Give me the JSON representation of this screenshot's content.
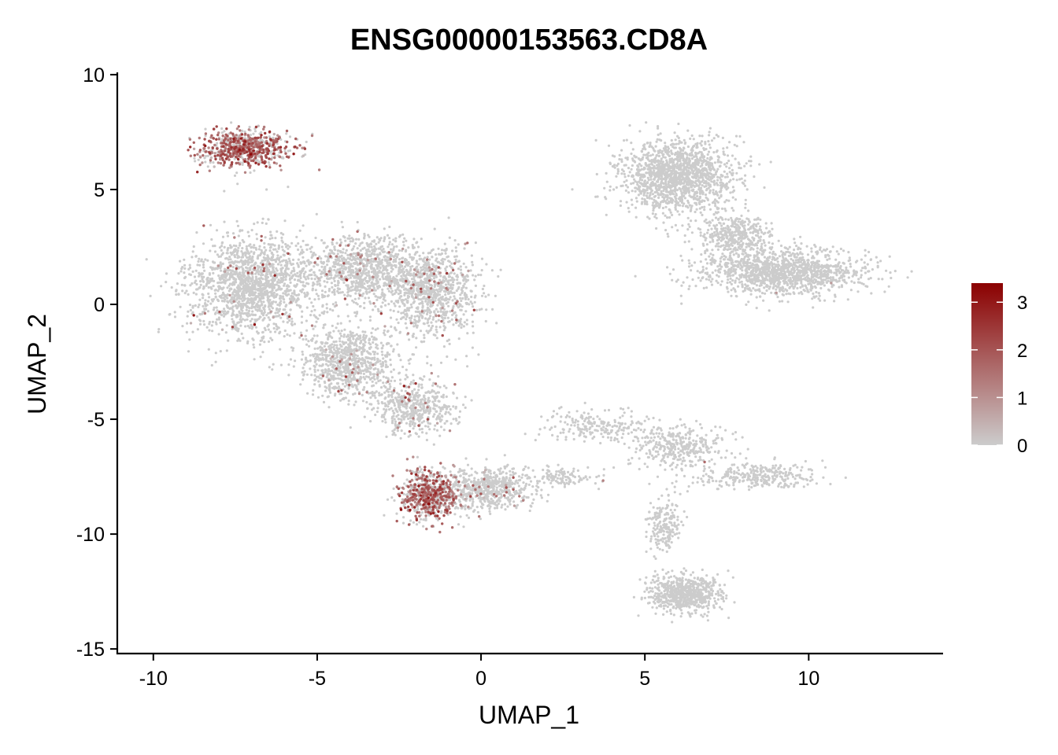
{
  "chart_data": {
    "type": "scatter",
    "title": "ENSG00000153563.CD8A",
    "xlabel": "UMAP_1",
    "ylabel": "UMAP_2",
    "xlim": [
      -11.1,
      14.1
    ],
    "ylim": [
      -15.2,
      10.1
    ],
    "x_ticks": [
      -10,
      -5,
      0,
      5,
      10
    ],
    "x_tick_labels": [
      "-10",
      "-5",
      "0",
      "5",
      "10"
    ],
    "y_ticks": [
      10,
      5,
      0,
      -5,
      -10,
      -15
    ],
    "y_tick_labels": [
      "10",
      "5",
      "0",
      "-5",
      "-10",
      "-15"
    ],
    "grid": false,
    "legend": {
      "position": "right",
      "type": "colorbar",
      "range": [
        0,
        3.4
      ],
      "ticks": [
        0,
        1,
        2,
        3
      ],
      "tick_labels": [
        "0",
        "1",
        "2",
        "3"
      ],
      "colors": [
        "#cccccc",
        "#8b0000"
      ]
    },
    "clusters": [
      {
        "cx": -7.2,
        "cy": 6.8,
        "sx": 1.2,
        "sy": 0.7,
        "n": 700,
        "expr_prob": 0.65,
        "expr_mean": 1.7
      },
      {
        "cx": -7.0,
        "cy": 0.8,
        "sx": 1.7,
        "sy": 2.0,
        "n": 1600,
        "expr_prob": 0.02,
        "expr_mean": 1.4
      },
      {
        "cx": -3.6,
        "cy": 1.5,
        "sx": 1.7,
        "sy": 1.3,
        "n": 1000,
        "expr_prob": 0.05,
        "expr_mean": 1.4
      },
      {
        "cx": -1.5,
        "cy": 0.5,
        "sx": 1.3,
        "sy": 1.8,
        "n": 900,
        "expr_prob": 0.05,
        "expr_mean": 1.5
      },
      {
        "cx": -4.0,
        "cy": -2.5,
        "sx": 1.3,
        "sy": 1.4,
        "n": 900,
        "expr_prob": 0.03,
        "expr_mean": 1.3
      },
      {
        "cx": -2.0,
        "cy": -4.5,
        "sx": 1.1,
        "sy": 1.0,
        "n": 500,
        "expr_prob": 0.06,
        "expr_mean": 1.4
      },
      {
        "cx": -1.6,
        "cy": -8.3,
        "sx": 0.8,
        "sy": 1.0,
        "n": 700,
        "expr_prob": 0.55,
        "expr_mean": 1.6
      },
      {
        "cx": 0.2,
        "cy": -8.0,
        "sx": 1.2,
        "sy": 0.8,
        "n": 600,
        "expr_prob": 0.05,
        "expr_mean": 1.2
      },
      {
        "cx": 6.0,
        "cy": 5.6,
        "sx": 1.6,
        "sy": 1.4,
        "n": 1500,
        "expr_prob": 0.0,
        "expr_mean": 0
      },
      {
        "cx": 9.2,
        "cy": 1.4,
        "sx": 2.2,
        "sy": 0.9,
        "n": 1300,
        "expr_prob": 0.002,
        "expr_mean": 0.8
      },
      {
        "cx": 7.8,
        "cy": 3.0,
        "sx": 1.0,
        "sy": 0.9,
        "n": 400,
        "expr_prob": 0.0,
        "expr_mean": 0
      },
      {
        "cx": 6.2,
        "cy": -12.6,
        "sx": 1.0,
        "sy": 0.7,
        "n": 700,
        "expr_prob": 0.0,
        "expr_mean": 0
      },
      {
        "cx": 6.0,
        "cy": -6.2,
        "sx": 1.3,
        "sy": 0.8,
        "n": 350,
        "expr_prob": 0.01,
        "expr_mean": 0.7
      },
      {
        "cx": 8.5,
        "cy": -7.5,
        "sx": 1.8,
        "sy": 0.5,
        "n": 300,
        "expr_prob": 0.0,
        "expr_mean": 0
      },
      {
        "cx": 3.5,
        "cy": -5.3,
        "sx": 1.5,
        "sy": 0.6,
        "n": 200,
        "expr_prob": 0.0,
        "expr_mean": 0
      },
      {
        "cx": 5.6,
        "cy": -9.5,
        "sx": 0.5,
        "sy": 1.1,
        "n": 200,
        "expr_prob": 0.0,
        "expr_mean": 0
      },
      {
        "cx": 2.5,
        "cy": -7.5,
        "sx": 1.0,
        "sy": 0.4,
        "n": 120,
        "expr_prob": 0.01,
        "expr_mean": 0.8
      }
    ]
  }
}
